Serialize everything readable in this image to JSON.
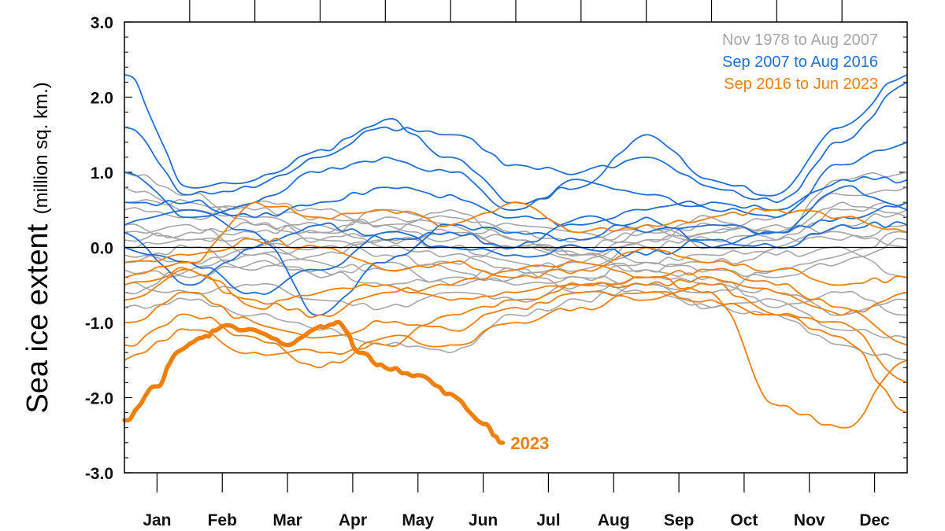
{
  "chart_data": {
    "type": "line",
    "ylabel": "Sea ice extent",
    "ylabel_units": "(million sq. km.)",
    "xlim": [
      0,
      12
    ],
    "ylim": [
      -3.0,
      3.0
    ],
    "y_ticks": [
      {
        "v": 3.0,
        "label": "3.0"
      },
      {
        "v": 2.0,
        "label": "2.0"
      },
      {
        "v": 1.0,
        "label": "1.0"
      },
      {
        "v": 0.0,
        "label": "0.0"
      },
      {
        "v": -1.0,
        "label": "-1.0"
      },
      {
        "v": -2.0,
        "label": "-2.0"
      },
      {
        "v": -3.0,
        "label": "-3.0"
      }
    ],
    "x_ticks": [
      {
        "v": 0.5,
        "label": "Jan"
      },
      {
        "v": 1.5,
        "label": "Feb"
      },
      {
        "v": 2.5,
        "label": "Mar"
      },
      {
        "v": 3.5,
        "label": "Apr"
      },
      {
        "v": 4.5,
        "label": "May"
      },
      {
        "v": 5.5,
        "label": "Jun"
      },
      {
        "v": 6.5,
        "label": "Jul"
      },
      {
        "v": 7.5,
        "label": "Aug"
      },
      {
        "v": 8.5,
        "label": "Sep"
      },
      {
        "v": 9.5,
        "label": "Oct"
      },
      {
        "v": 10.5,
        "label": "Nov"
      },
      {
        "v": 11.5,
        "label": "Dec"
      }
    ],
    "x_points": [
      0,
      1,
      2,
      3,
      4,
      5,
      6,
      7,
      8,
      9,
      10,
      11,
      12
    ],
    "zero_line": true,
    "legend_placement": "top-right",
    "legend": [
      {
        "label": "Nov 1978 to Aug 2007",
        "color": "#a6a6a6"
      },
      {
        "label": "Sep 2007 to Aug 2016",
        "color": "#1f6fd6"
      },
      {
        "label": "Sep 2016 to Jun 2023",
        "color": "#f07f0b"
      }
    ],
    "series": [
      {
        "group": 0,
        "color": "#a6a6a6",
        "values": [
          1.0,
          0.7,
          0.3,
          0.1,
          0.2,
          0.5,
          0.1,
          -0.1,
          0.2,
          0.1,
          0.2,
          0.9,
          1.0
        ]
      },
      {
        "group": 0,
        "color": "#a6a6a6",
        "values": [
          0.8,
          0.5,
          0.4,
          0.2,
          0.5,
          0.4,
          0.2,
          0.1,
          0.3,
          0.0,
          0.1,
          0.5,
          0.6
        ]
      },
      {
        "group": 0,
        "color": "#a6a6a6",
        "values": [
          0.5,
          0.4,
          0.6,
          0.5,
          0.3,
          0.2,
          0.0,
          -0.2,
          0.1,
          0.2,
          0.4,
          0.7,
          0.8
        ]
      },
      {
        "group": 0,
        "color": "#a6a6a6",
        "values": [
          0.3,
          0.1,
          0.2,
          0.3,
          0.0,
          -0.1,
          -0.3,
          -0.4,
          -0.2,
          -0.1,
          0.0,
          0.3,
          0.5
        ]
      },
      {
        "group": 0,
        "color": "#a6a6a6",
        "values": [
          0.2,
          0.3,
          -0.1,
          0.0,
          0.1,
          0.0,
          -0.2,
          -0.3,
          0.1,
          0.3,
          0.2,
          0.6,
          0.4
        ]
      },
      {
        "group": 0,
        "color": "#a6a6a6",
        "values": [
          0.0,
          0.1,
          0.1,
          -0.2,
          -0.3,
          -0.2,
          0.0,
          -0.1,
          -0.2,
          -0.3,
          -0.4,
          -0.2,
          0.1
        ]
      },
      {
        "group": 0,
        "color": "#a6a6a6",
        "values": [
          -0.1,
          -0.2,
          0.0,
          0.1,
          -0.1,
          -0.3,
          -0.5,
          -0.4,
          -0.5,
          -0.6,
          -0.3,
          -0.1,
          0.2
        ]
      },
      {
        "group": 0,
        "color": "#a6a6a6",
        "values": [
          -0.3,
          -0.4,
          -0.2,
          -0.3,
          -0.5,
          -0.4,
          -0.3,
          -0.6,
          -0.4,
          -0.5,
          -0.6,
          -0.9,
          -0.7
        ]
      },
      {
        "group": 0,
        "color": "#a6a6a6",
        "values": [
          -0.5,
          -0.6,
          -0.5,
          -0.7,
          -0.8,
          -0.6,
          -0.7,
          -0.5,
          -0.6,
          -0.8,
          -0.7,
          -1.1,
          -1.2
        ]
      },
      {
        "group": 0,
        "color": "#a6a6a6",
        "values": [
          -0.8,
          -0.7,
          -0.9,
          -1.1,
          -1.3,
          -1.4,
          -0.9,
          -0.7,
          -0.5,
          -0.8,
          -0.9,
          -1.3,
          -1.5
        ]
      },
      {
        "group": 0,
        "color": "#a6a6a6",
        "values": [
          0.6,
          0.6,
          0.5,
          0.4,
          0.3,
          0.1,
          0.3,
          0.2,
          0.0,
          0.2,
          0.3,
          0.2,
          0.0
        ]
      },
      {
        "group": 0,
        "color": "#a6a6a6",
        "values": [
          -0.2,
          0.0,
          -0.3,
          -0.1,
          0.1,
          0.2,
          0.1,
          -0.1,
          -0.3,
          -0.2,
          -0.1,
          0.0,
          -0.4
        ]
      },
      {
        "group": 0,
        "color": "#a6a6a6",
        "values": [
          0.1,
          0.2,
          0.3,
          0.2,
          0.4,
          0.3,
          0.0,
          0.0,
          0.2,
          0.4,
          0.1,
          0.1,
          0.3
        ]
      },
      {
        "group": 0,
        "color": "#a6a6a6",
        "values": [
          -0.6,
          -0.3,
          -0.1,
          -0.4,
          -0.2,
          -0.5,
          -0.4,
          -0.2,
          -0.3,
          -0.4,
          -0.8,
          -0.6,
          -0.9
        ]
      },
      {
        "group": 1,
        "color": "#1f6fd6",
        "values": [
          2.3,
          0.8,
          0.9,
          1.3,
          1.7,
          1.2,
          0.6,
          0.8,
          1.5,
          0.9,
          0.7,
          1.6,
          2.3
        ]
      },
      {
        "group": 1,
        "color": "#1f6fd6",
        "values": [
          1.6,
          0.7,
          0.8,
          1.2,
          1.6,
          1.5,
          1.1,
          1.0,
          1.2,
          0.8,
          0.6,
          1.4,
          2.2
        ]
      },
      {
        "group": 1,
        "color": "#1f6fd6",
        "values": [
          1.0,
          0.4,
          0.6,
          1.0,
          1.2,
          1.0,
          0.5,
          0.9,
          0.7,
          0.5,
          0.4,
          1.1,
          1.4
        ]
      },
      {
        "group": 1,
        "color": "#1f6fd6",
        "values": [
          0.6,
          0.6,
          0.4,
          0.6,
          0.8,
          0.7,
          0.4,
          0.3,
          0.5,
          0.6,
          0.5,
          0.9,
          0.9
        ]
      },
      {
        "group": 1,
        "color": "#1f6fd6",
        "values": [
          0.2,
          -0.5,
          0.0,
          0.3,
          0.1,
          0.2,
          0.0,
          0.4,
          0.2,
          0.3,
          0.2,
          0.4,
          0.6
        ]
      },
      {
        "group": 1,
        "color": "#1f6fd6",
        "values": [
          0.0,
          -0.2,
          -0.6,
          -0.3,
          0.2,
          0.0,
          -0.1,
          0.0,
          -0.1,
          0.1,
          0.0,
          0.3,
          0.3
        ]
      },
      {
        "group": 1,
        "color": "#1f6fd6",
        "values": [
          0.3,
          0.5,
          0.2,
          -0.9,
          -0.2,
          0.3,
          0.2,
          0.1,
          0.4,
          0.0,
          0.2,
          0.8,
          0.5
        ]
      },
      {
        "group": 2,
        "color": "#f07f0b",
        "values": [
          -0.4,
          -0.2,
          0.6,
          0.4,
          0.5,
          0.3,
          0.6,
          0.2,
          0.3,
          0.4,
          0.5,
          0.4,
          0.2
        ]
      },
      {
        "group": 2,
        "color": "#f07f0b",
        "values": [
          -0.2,
          -0.1,
          0.1,
          0.0,
          -0.3,
          -0.2,
          -0.4,
          -0.3,
          0.0,
          -0.2,
          -0.3,
          -0.5,
          -0.4
        ]
      },
      {
        "group": 2,
        "color": "#f07f0b",
        "values": [
          -0.7,
          -0.3,
          -0.7,
          -0.9,
          -0.6,
          -0.5,
          -0.3,
          -0.2,
          -0.4,
          -0.3,
          -0.5,
          -0.8,
          -1.3
        ]
      },
      {
        "group": 2,
        "color": "#f07f0b",
        "values": [
          -1.0,
          -0.6,
          -1.0,
          -1.2,
          -1.0,
          -1.1,
          -0.8,
          -0.6,
          -0.7,
          -0.5,
          -0.9,
          -1.0,
          -1.8
        ]
      },
      {
        "group": 2,
        "color": "#f07f0b",
        "values": [
          -1.3,
          -0.9,
          -1.2,
          -1.6,
          -1.2,
          -1.3,
          -1.0,
          -0.8,
          -0.6,
          -0.7,
          -0.9,
          -1.2,
          -2.2
        ]
      },
      {
        "group": 2,
        "color": "#f07f0b",
        "values": [
          -1.5,
          -1.1,
          -1.4,
          -1.4,
          -1.3,
          -0.9,
          -0.7,
          -0.5,
          -0.4,
          -0.6,
          -2.1,
          -2.4,
          -1.5
        ]
      },
      {
        "group": 2,
        "color": "#f07f0b",
        "values": [
          -0.5,
          -0.3,
          -0.8,
          -0.6,
          -0.5,
          -0.7,
          -0.6,
          -0.5,
          -0.5,
          -0.4,
          -0.6,
          -0.9,
          -0.6
        ]
      }
    ],
    "highlight": {
      "name": "2023",
      "label": "2023",
      "color": "#f07f0b",
      "x": [
        0,
        0.5,
        0.8,
        1.2,
        1.5,
        2.0,
        2.5,
        3.0,
        3.3,
        3.6,
        4.0,
        4.5,
        5.0,
        5.5,
        5.8
      ],
      "values": [
        -2.3,
        -1.85,
        -1.4,
        -1.2,
        -1.05,
        -1.1,
        -1.3,
        -1.05,
        -1.0,
        -1.4,
        -1.6,
        -1.7,
        -1.95,
        -2.35,
        -2.6
      ]
    }
  }
}
